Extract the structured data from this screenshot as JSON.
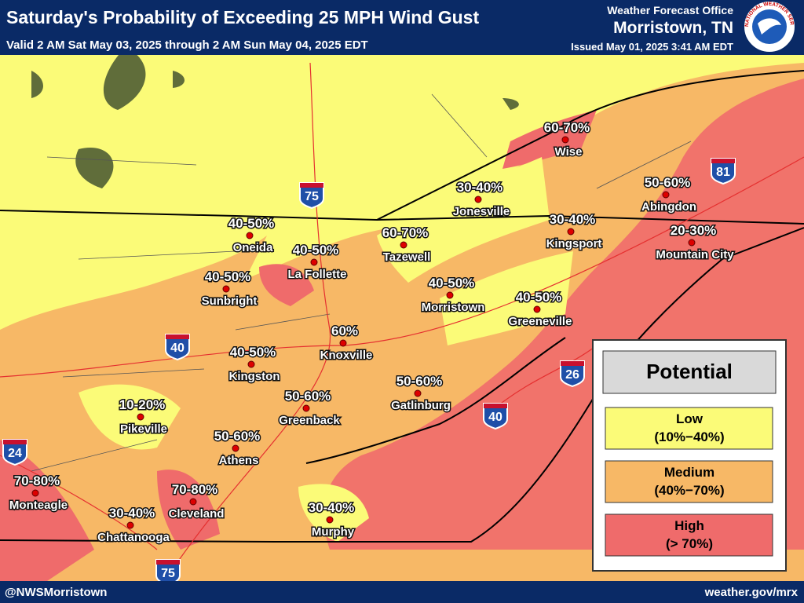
{
  "header": {
    "title": "Saturday's Probability of Exceeding 25 MPH Wind Gust",
    "subtitle": "Valid 2 AM Sat May 03, 2025 through 2 AM Sun May 04, 2025 EDT",
    "office_line1": "Weather Forecast Office",
    "office_line2": "Morristown, TN",
    "issued": "Issued May 01, 2025 3:41 AM EDT",
    "logo_text": "NATIONAL WEATHER SERVICE"
  },
  "cities": [
    {
      "name": "Wise",
      "probability": "60-70%"
    },
    {
      "name": "Jonesville",
      "probability": "30-40%"
    },
    {
      "name": "Abingdon",
      "probability": "50-60%"
    },
    {
      "name": "Kingsport",
      "probability": "30-40%"
    },
    {
      "name": "Mountain City",
      "probability": "20-30%"
    },
    {
      "name": "Tazewell",
      "probability": "60-70%"
    },
    {
      "name": "Oneida",
      "probability": "40-50%"
    },
    {
      "name": "La Follette",
      "probability": "40-50%"
    },
    {
      "name": "Sunbright",
      "probability": "40-50%"
    },
    {
      "name": "Morristown",
      "probability": "40-50%"
    },
    {
      "name": "Greeneville",
      "probability": "40-50%"
    },
    {
      "name": "Knoxville",
      "probability": "60%"
    },
    {
      "name": "Kingston",
      "probability": "40-50%"
    },
    {
      "name": "Gatlinburg",
      "probability": "50-60%"
    },
    {
      "name": "Greenback",
      "probability": "50-60%"
    },
    {
      "name": "Pikeville",
      "probability": "10-20%"
    },
    {
      "name": "Athens",
      "probability": "50-60%"
    },
    {
      "name": "Monteagle",
      "probability": "70-80%"
    },
    {
      "name": "Cleveland",
      "probability": "70-80%"
    },
    {
      "name": "Chattanooga",
      "probability": "30-40%"
    },
    {
      "name": "Murphy",
      "probability": "30-40%"
    }
  ],
  "interstates": [
    "75",
    "81",
    "40",
    "26",
    "40",
    "24",
    "75"
  ],
  "legend": {
    "title": "Potential",
    "items": [
      {
        "label": "Low",
        "range": "(10%−40%)"
      },
      {
        "label": "Medium",
        "range": "(40%−70%)"
      },
      {
        "label": "High",
        "range": "(> 70%)"
      }
    ]
  },
  "footer": {
    "left": "@NWSMorristown",
    "right": "weather.gov/mrx"
  }
}
